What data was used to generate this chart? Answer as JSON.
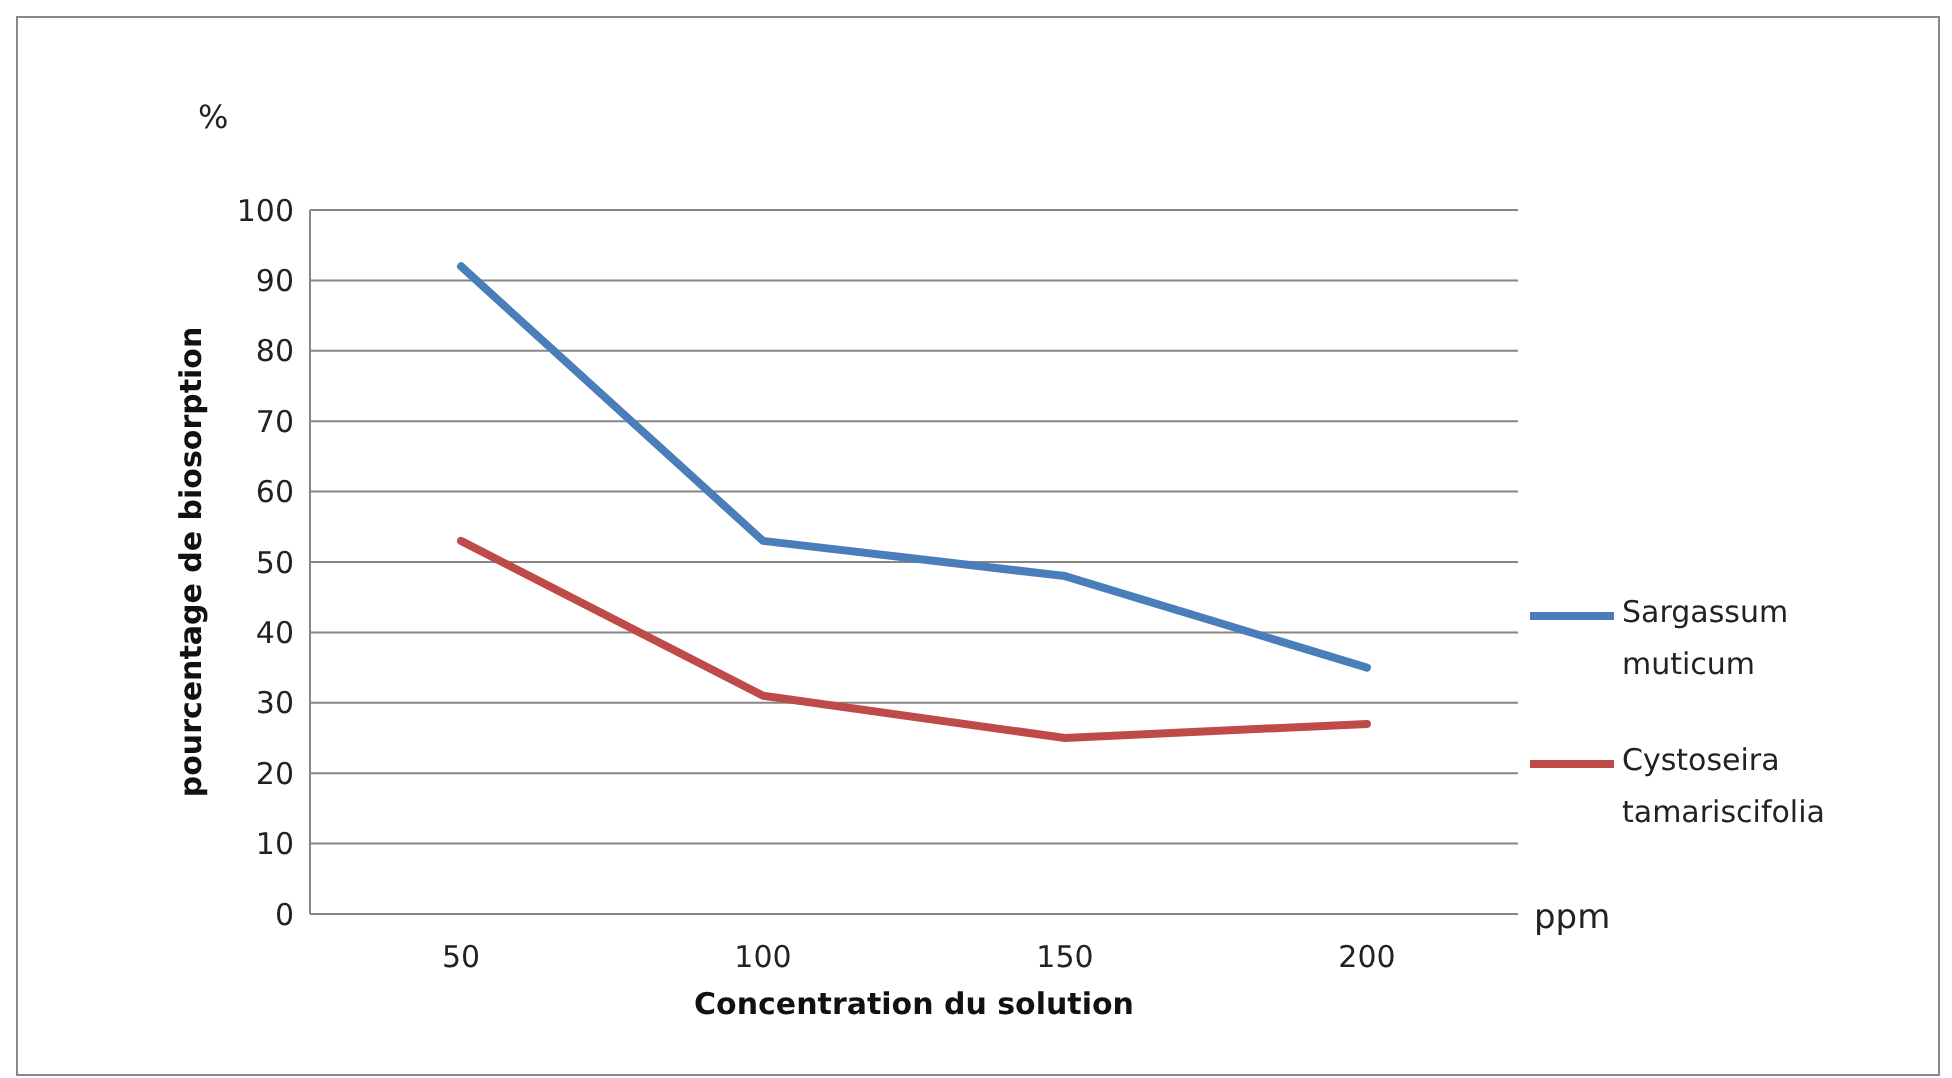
{
  "chart_data": {
    "type": "line",
    "xlabel": "Concentration du solution",
    "ylabel": "pourcentage de biosorption",
    "categories": [
      "50",
      "100",
      "150",
      "200"
    ],
    "series": [
      {
        "name": "Sargassum muticum",
        "color": "#4a7ebb",
        "values": [
          92,
          53,
          48,
          35
        ]
      },
      {
        "name": "Cystoseira tamariscifolia",
        "color": "#be4b48",
        "values": [
          53,
          31,
          25,
          27
        ]
      }
    ],
    "ylim": [
      0,
      100
    ],
    "yticks": [
      0,
      10,
      20,
      30,
      40,
      50,
      60,
      70,
      80,
      90,
      100
    ],
    "grid": "y",
    "legend": "right",
    "marker": "none",
    "annotations": [
      "%",
      "ppm"
    ]
  }
}
